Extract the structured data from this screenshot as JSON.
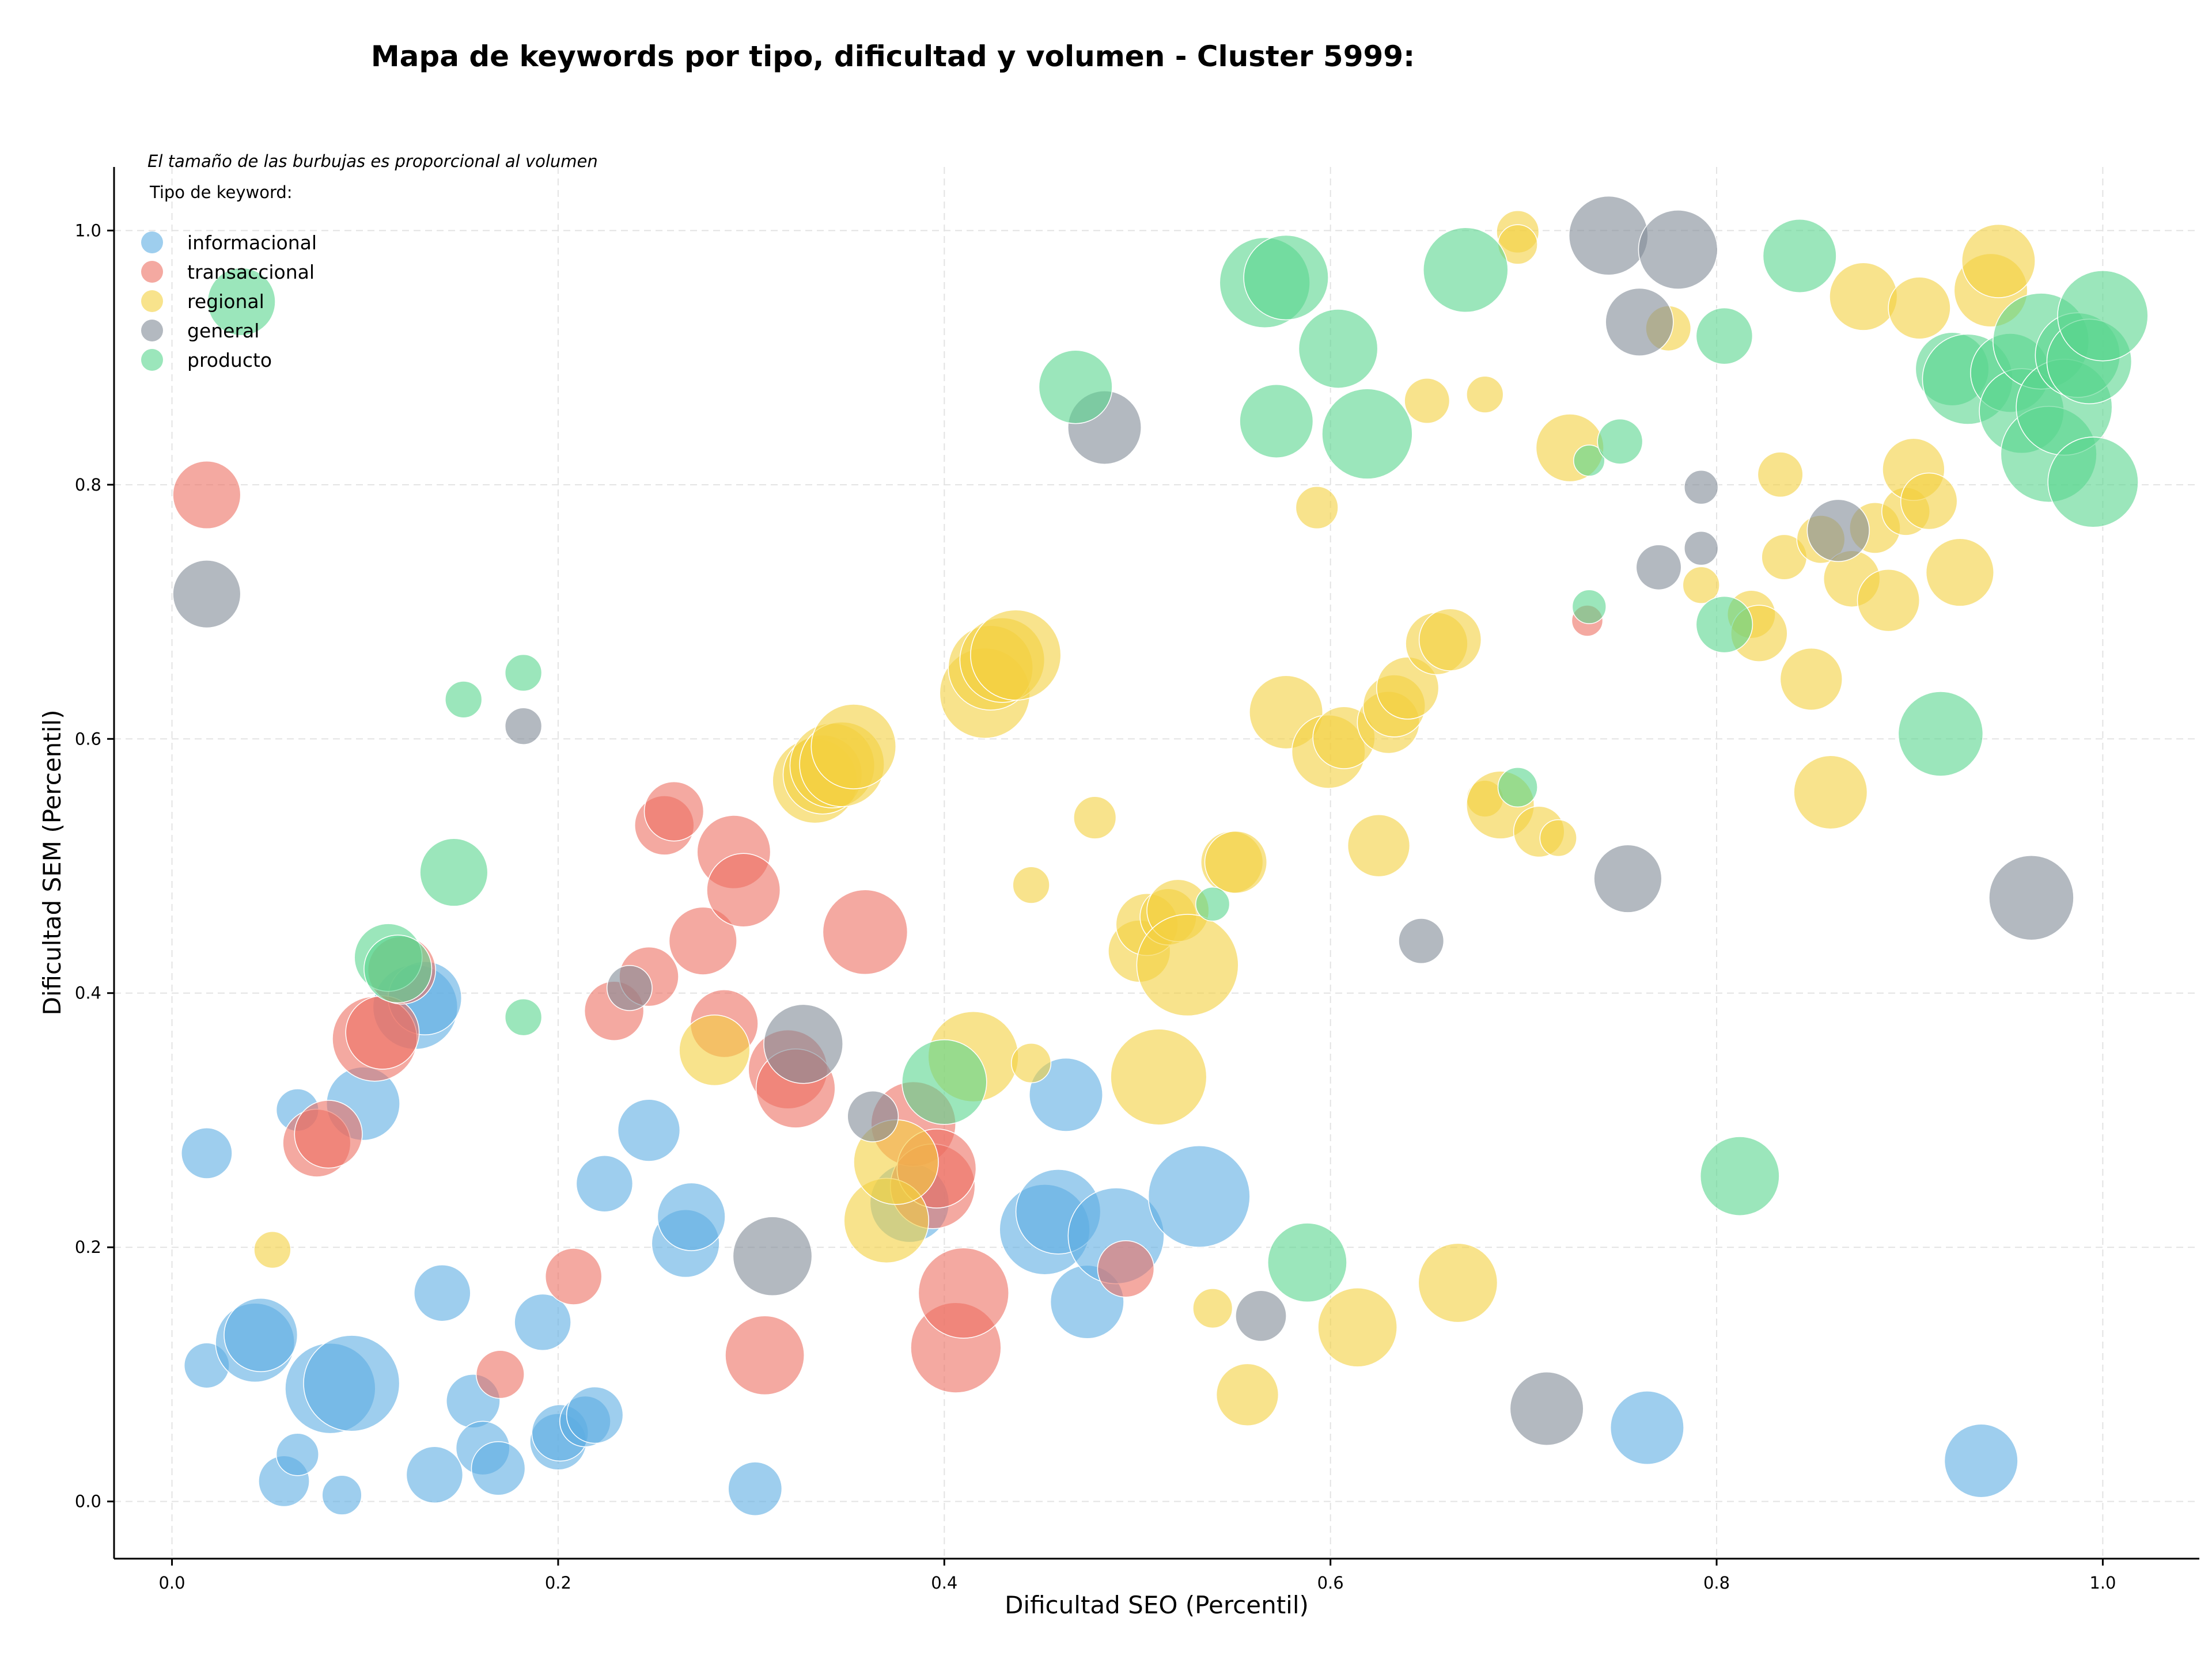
{
  "chart_data": {
    "type": "scatter",
    "title": "Mapa de keywords por tipo, dificultad y volumen - Cluster 5999:",
    "subtitle": "El tamaño de las burbujas es proporcional al volumen",
    "legend_title": "Tipo de keyword:",
    "legend_placement": "top-left",
    "xlabel": "Dificultad SEO (Percentil)",
    "ylabel": "Dificultad SEM (Percentil)",
    "xlim": [
      -0.03,
      1.05
    ],
    "ylim": [
      -0.045,
      1.05
    ],
    "xticks": [
      "0.0",
      "0.2",
      "0.4",
      "0.6",
      "0.8",
      "1.0"
    ],
    "yticks": [
      "0.0",
      "0.2",
      "0.4",
      "0.6",
      "0.8",
      "1.0"
    ],
    "grid": true,
    "series": [
      {
        "name": "informacional",
        "color": "#5dade2",
        "points": [
          [
            0.018,
            0.274,
            18
          ],
          [
            0.018,
            0.107,
            16
          ],
          [
            0.043,
            0.125,
            28
          ],
          [
            0.046,
            0.131,
            26
          ],
          [
            0.058,
            0.016,
            18
          ],
          [
            0.065,
            0.037,
            15
          ],
          [
            0.065,
            0.308,
            15
          ],
          [
            0.082,
            0.089,
            32
          ],
          [
            0.088,
            0.005,
            14
          ],
          [
            0.093,
            0.093,
            34
          ],
          [
            0.099,
            0.313,
            26
          ],
          [
            0.126,
            0.389,
            30
          ],
          [
            0.131,
            0.396,
            26
          ],
          [
            0.136,
            0.021,
            20
          ],
          [
            0.14,
            0.164,
            20
          ],
          [
            0.156,
            0.079,
            19
          ],
          [
            0.161,
            0.042,
            19
          ],
          [
            0.169,
            0.026,
            19
          ],
          [
            0.192,
            0.141,
            20
          ],
          [
            0.2,
            0.047,
            20
          ],
          [
            0.201,
            0.054,
            20
          ],
          [
            0.214,
            0.063,
            18
          ],
          [
            0.219,
            0.068,
            20
          ],
          [
            0.224,
            0.25,
            20
          ],
          [
            0.247,
            0.292,
            22
          ],
          [
            0.266,
            0.203,
            24
          ],
          [
            0.269,
            0.224,
            24
          ],
          [
            0.302,
            0.01,
            19
          ],
          [
            0.382,
            0.235,
            28
          ],
          [
            0.452,
            0.214,
            32
          ],
          [
            0.459,
            0.228,
            30
          ],
          [
            0.463,
            0.32,
            26
          ],
          [
            0.474,
            0.157,
            26
          ],
          [
            0.489,
            0.209,
            34
          ],
          [
            0.532,
            0.24,
            36
          ],
          [
            0.764,
            0.058,
            26
          ],
          [
            0.937,
            0.032,
            26
          ]
        ]
      },
      {
        "name": "transaccional",
        "color": "#ec7063",
        "points": [
          [
            0.018,
            0.792,
            24
          ],
          [
            0.075,
            0.282,
            24
          ],
          [
            0.081,
            0.289,
            24
          ],
          [
            0.105,
            0.364,
            30
          ],
          [
            0.109,
            0.369,
            26
          ],
          [
            0.119,
            0.418,
            24
          ],
          [
            0.208,
            0.177,
            20
          ],
          [
            0.17,
            0.1,
            17
          ],
          [
            0.229,
            0.386,
            21
          ],
          [
            0.247,
            0.413,
            21
          ],
          [
            0.255,
            0.532,
            21
          ],
          [
            0.26,
            0.543,
            21
          ],
          [
            0.275,
            0.441,
            24
          ],
          [
            0.286,
            0.376,
            24
          ],
          [
            0.291,
            0.511,
            26
          ],
          [
            0.296,
            0.481,
            26
          ],
          [
            0.307,
            0.115,
            28
          ],
          [
            0.319,
            0.34,
            28
          ],
          [
            0.323,
            0.325,
            28
          ],
          [
            0.359,
            0.448,
            30
          ],
          [
            0.384,
            0.297,
            30
          ],
          [
            0.394,
            0.248,
            30
          ],
          [
            0.396,
            0.262,
            28
          ],
          [
            0.406,
            0.121,
            32
          ],
          [
            0.41,
            0.164,
            32
          ],
          [
            0.494,
            0.183,
            20
          ],
          [
            0.733,
            0.693,
            11
          ]
        ]
      },
      {
        "name": "regional",
        "color": "#f4d03f",
        "points": [
          [
            0.052,
            0.198,
            13
          ],
          [
            0.281,
            0.355,
            25
          ],
          [
            0.333,
            0.567,
            30
          ],
          [
            0.337,
            0.572,
            28
          ],
          [
            0.342,
            0.579,
            30
          ],
          [
            0.347,
            0.58,
            30
          ],
          [
            0.353,
            0.594,
            30
          ],
          [
            0.37,
            0.221,
            30
          ],
          [
            0.375,
            0.267,
            30
          ],
          [
            0.415,
            0.35,
            32
          ],
          [
            0.421,
            0.636,
            32
          ],
          [
            0.424,
            0.656,
            30
          ],
          [
            0.43,
            0.662,
            30
          ],
          [
            0.437,
            0.666,
            32
          ],
          [
            0.445,
            0.485,
            13
          ],
          [
            0.445,
            0.345,
            14
          ],
          [
            0.478,
            0.538,
            15
          ],
          [
            0.501,
            0.433,
            22
          ],
          [
            0.505,
            0.454,
            22
          ],
          [
            0.511,
            0.334,
            34
          ],
          [
            0.516,
            0.46,
            20
          ],
          [
            0.521,
            0.465,
            22
          ],
          [
            0.526,
            0.422,
            36
          ],
          [
            0.539,
            0.152,
            14
          ],
          [
            0.549,
            0.503,
            22
          ],
          [
            0.551,
            0.503,
            22
          ],
          [
            0.557,
            0.084,
            22
          ],
          [
            0.577,
            0.621,
            26
          ],
          [
            0.593,
            0.782,
            15
          ],
          [
            0.599,
            0.59,
            26
          ],
          [
            0.607,
            0.601,
            22
          ],
          [
            0.614,
            0.137,
            28
          ],
          [
            0.625,
            0.516,
            22
          ],
          [
            0.63,
            0.613,
            22
          ],
          [
            0.633,
            0.626,
            22
          ],
          [
            0.64,
            0.64,
            22
          ],
          [
            0.65,
            0.866,
            16
          ],
          [
            0.655,
            0.675,
            22
          ],
          [
            0.662,
            0.678,
            22
          ],
          [
            0.666,
            0.172,
            28
          ],
          [
            0.68,
            0.871,
            13
          ],
          [
            0.68,
            0.553,
            13
          ],
          [
            0.688,
            0.548,
            24
          ],
          [
            0.697,
            0.999,
            15
          ],
          [
            0.697,
            0.989,
            14
          ],
          [
            0.708,
            0.527,
            18
          ],
          [
            0.718,
            0.522,
            13
          ],
          [
            0.724,
            0.829,
            24
          ],
          [
            0.775,
            0.923,
            16
          ],
          [
            0.792,
            0.721,
            13
          ],
          [
            0.818,
            0.698,
            17
          ],
          [
            0.822,
            0.683,
            20
          ],
          [
            0.833,
            0.808,
            16
          ],
          [
            0.835,
            0.743,
            16
          ],
          [
            0.849,
            0.647,
            22
          ],
          [
            0.854,
            0.757,
            17
          ],
          [
            0.859,
            0.558,
            26
          ],
          [
            0.87,
            0.726,
            20
          ],
          [
            0.876,
            0.948,
            24
          ],
          [
            0.882,
            0.766,
            18
          ],
          [
            0.889,
            0.709,
            22
          ],
          [
            0.898,
            0.779,
            17
          ],
          [
            0.902,
            0.812,
            22
          ],
          [
            0.905,
            0.939,
            22
          ],
          [
            0.91,
            0.787,
            20
          ],
          [
            0.926,
            0.731,
            24
          ],
          [
            0.942,
            0.953,
            26
          ],
          [
            0.946,
            0.976,
            26
          ]
        ]
      },
      {
        "name": "general",
        "color": "#808b96",
        "points": [
          [
            0.018,
            0.714,
            24
          ],
          [
            0.182,
            0.61,
            13
          ],
          [
            0.237,
            0.404,
            16
          ],
          [
            0.311,
            0.193,
            28
          ],
          [
            0.327,
            0.36,
            28
          ],
          [
            0.363,
            0.303,
            18
          ],
          [
            0.483,
            0.845,
            26
          ],
          [
            0.564,
            0.146,
            18
          ],
          [
            0.647,
            0.441,
            16
          ],
          [
            0.712,
            0.073,
            26
          ],
          [
            0.744,
            0.996,
            28
          ],
          [
            0.754,
            0.49,
            24
          ],
          [
            0.76,
            0.928,
            24
          ],
          [
            0.77,
            0.735,
            16
          ],
          [
            0.78,
            0.985,
            28
          ],
          [
            0.792,
            0.798,
            12
          ],
          [
            0.792,
            0.75,
            12
          ],
          [
            0.863,
            0.764,
            22
          ],
          [
            0.963,
            0.475,
            30
          ]
        ]
      },
      {
        "name": "producto",
        "color": "#58d68d",
        "points": [
          [
            0.036,
            0.944,
            24
          ],
          [
            0.112,
            0.428,
            24
          ],
          [
            0.117,
            0.419,
            24
          ],
          [
            0.151,
            0.631,
            13
          ],
          [
            0.146,
            0.495,
            24
          ],
          [
            0.182,
            0.652,
            13
          ],
          [
            0.182,
            0.381,
            13
          ],
          [
            0.4,
            0.33,
            30
          ],
          [
            0.468,
            0.877,
            26
          ],
          [
            0.539,
            0.47,
            12
          ],
          [
            0.566,
            0.959,
            32
          ],
          [
            0.577,
            0.963,
            30
          ],
          [
            0.572,
            0.85,
            26
          ],
          [
            0.588,
            0.188,
            28
          ],
          [
            0.604,
            0.907,
            28
          ],
          [
            0.619,
            0.84,
            32
          ],
          [
            0.67,
            0.969,
            30
          ],
          [
            0.697,
            0.562,
            14
          ],
          [
            0.734,
            0.819,
            11
          ],
          [
            0.734,
            0.704,
            12
          ],
          [
            0.75,
            0.834,
            16
          ],
          [
            0.804,
            0.917,
            20
          ],
          [
            0.804,
            0.69,
            20
          ],
          [
            0.812,
            0.256,
            28
          ],
          [
            0.843,
            0.98,
            26
          ],
          [
            0.916,
            0.604,
            30
          ],
          [
            0.922,
            0.891,
            26
          ],
          [
            0.93,
            0.883,
            32
          ],
          [
            0.952,
            0.888,
            28
          ],
          [
            0.958,
            0.858,
            30
          ],
          [
            0.968,
            0.913,
            34
          ],
          [
            0.972,
            0.824,
            34
          ],
          [
            0.98,
            0.861,
            34
          ],
          [
            0.987,
            0.902,
            30
          ],
          [
            0.993,
            0.897,
            30
          ],
          [
            0.995,
            0.802,
            32
          ],
          [
            1.0,
            0.933,
            32
          ]
        ]
      }
    ]
  }
}
